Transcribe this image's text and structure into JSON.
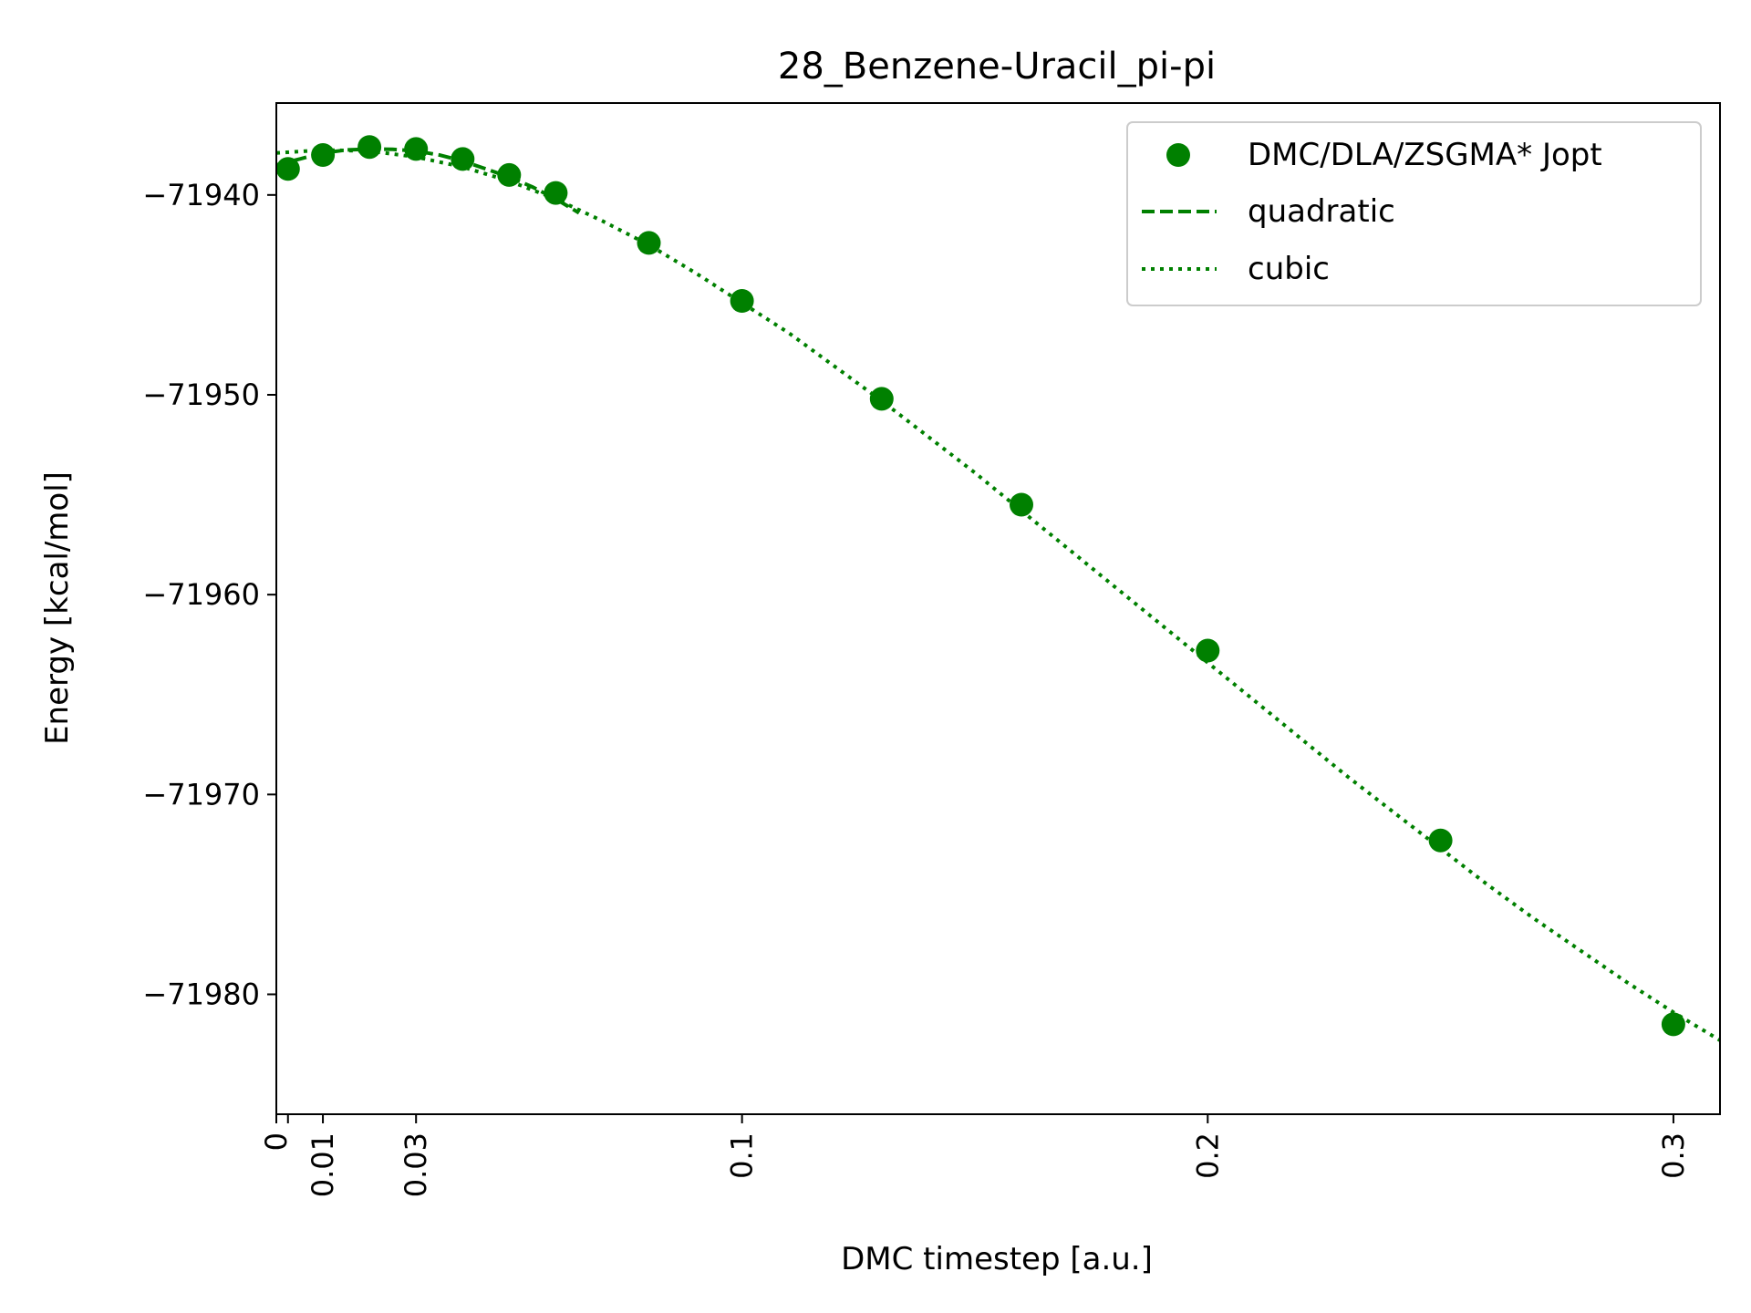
{
  "chart_data": {
    "type": "scatter",
    "title": "28_Benzene-Uracil_pi-pi",
    "xlabel": "DMC timestep [a.u.]",
    "ylabel": "Energy [kcal/mol]",
    "xlim": [
      0,
      0.31
    ],
    "ylim": [
      -71986,
      -71935.4
    ],
    "x_ticks": [
      {
        "value": 0,
        "label": "0"
      },
      {
        "value": 0.0025,
        "label": ""
      },
      {
        "value": 0.01,
        "label": "0.01"
      },
      {
        "value": 0.03,
        "label": "0.03"
      },
      {
        "value": 0.1,
        "label": "0.1"
      },
      {
        "value": 0.2,
        "label": "0.2"
      },
      {
        "value": 0.3,
        "label": "0.3"
      }
    ],
    "y_ticks": [
      {
        "value": -71940,
        "label": "−71940"
      },
      {
        "value": -71950,
        "label": "−71950"
      },
      {
        "value": -71960,
        "label": "−71960"
      },
      {
        "value": -71970,
        "label": "−71970"
      },
      {
        "value": -71980,
        "label": "−71980"
      }
    ],
    "legend_position": "top-right",
    "grid": false,
    "color": "#008000",
    "series": [
      {
        "name": "DMC/DLA/ZSGMA* Jopt",
        "style": "markers",
        "x": [
          0.0025,
          0.01,
          0.02,
          0.03,
          0.04,
          0.05,
          0.06,
          0.08,
          0.1,
          0.13,
          0.16,
          0.2,
          0.25,
          0.3
        ],
        "y": [
          -71938.7,
          -71938.0,
          -71937.6,
          -71937.7,
          -71938.2,
          -71939.0,
          -71939.9,
          -71942.4,
          -71945.3,
          -71950.2,
          -71955.5,
          -71962.8,
          -71972.3,
          -71981.5
        ]
      },
      {
        "name": "quadratic",
        "style": "dashed",
        "x": [
          0,
          0.005,
          0.01,
          0.015,
          0.02,
          0.025,
          0.03,
          0.035,
          0.04,
          0.045,
          0.05,
          0.055,
          0.06,
          0.065
        ],
        "y": [
          -71938.5,
          -71938.2,
          -71937.9,
          -71937.75,
          -71937.7,
          -71937.72,
          -71937.8,
          -71938.0,
          -71938.3,
          -71938.7,
          -71939.1,
          -71939.6,
          -71940.2,
          -71940.9
        ]
      },
      {
        "name": "cubic",
        "style": "dotted",
        "x": [
          0,
          0.01,
          0.02,
          0.03,
          0.04,
          0.05,
          0.06,
          0.07,
          0.08,
          0.09,
          0.1,
          0.11,
          0.12,
          0.13,
          0.14,
          0.15,
          0.16,
          0.17,
          0.18,
          0.19,
          0.2,
          0.21,
          0.22,
          0.23,
          0.24,
          0.25,
          0.26,
          0.27,
          0.28,
          0.29,
          0.3,
          0.31
        ],
        "y": [
          -71937.9,
          -71937.75,
          -71937.8,
          -71938.1,
          -71938.6,
          -71939.3,
          -71940.2,
          -71941.3,
          -71942.5,
          -71943.9,
          -71945.4,
          -71946.9,
          -71948.6,
          -71950.3,
          -71952.1,
          -71953.9,
          -71955.8,
          -71957.7,
          -71959.6,
          -71961.5,
          -71963.4,
          -71965.3,
          -71967.2,
          -71969.1,
          -71970.9,
          -71972.7,
          -71974.5,
          -71976.2,
          -71977.8,
          -71979.4,
          -71980.9,
          -71982.3
        ]
      }
    ]
  }
}
